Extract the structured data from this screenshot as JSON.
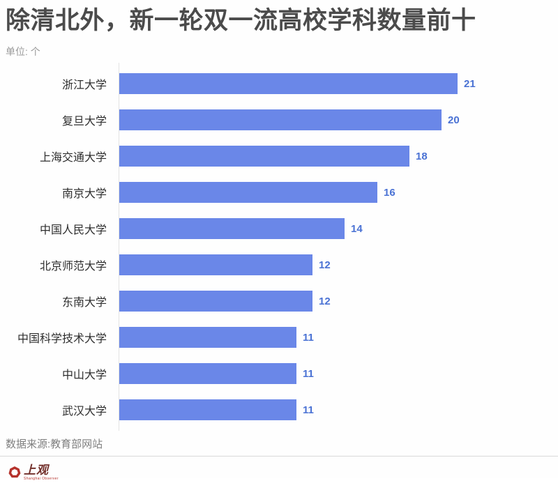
{
  "title": "除清北外，新一轮双一流高校学科数量前十",
  "unit_label": "单位: 个",
  "source_text": "数据来源:教育部网站",
  "logo": {
    "name": "上观",
    "subtitle": "Shanghai Observer"
  },
  "colors": {
    "bar": "#6a87e8",
    "value_label": "#4a72d4",
    "title_text": "#4b4b4b",
    "logo_red": "#b5322c"
  },
  "chart_data": {
    "type": "bar",
    "orientation": "horizontal",
    "title": "除清北外，新一轮双一流高校学科数量前十",
    "unit": "个",
    "categories": [
      "浙江大学",
      "复旦大学",
      "上海交通大学",
      "南京大学",
      "中国人民大学",
      "北京师范大学",
      "东南大学",
      "中国科学技术大学",
      "中山大学",
      "武汉大学"
    ],
    "values": [
      21,
      20,
      18,
      16,
      14,
      12,
      12,
      11,
      11,
      11
    ],
    "xlim": [
      0,
      21
    ],
    "value_labels_shown": true,
    "legend": "none",
    "grid": "off"
  }
}
